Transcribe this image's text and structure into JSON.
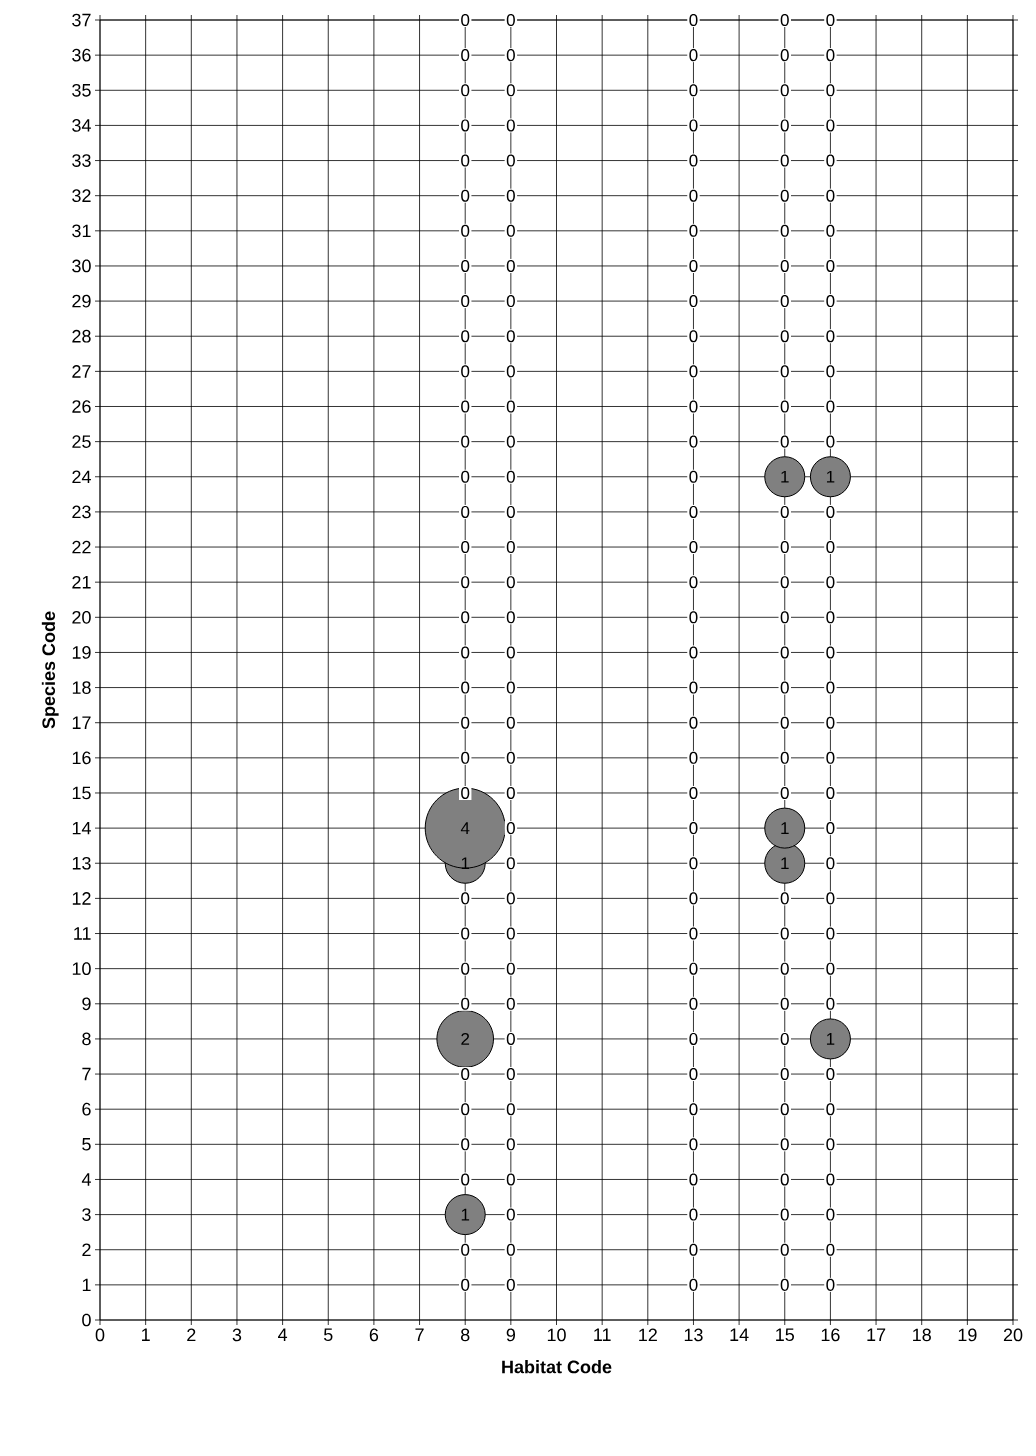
{
  "chart_data": {
    "type": "bubble",
    "xlabel": "Habitat Code",
    "ylabel": "Species Code",
    "series": [
      {
        "color": "#808080",
        "x": [
          8,
          8,
          8,
          8,
          15,
          15,
          15,
          16,
          16
        ],
        "values": [
          3,
          8,
          13,
          14,
          13,
          14,
          24,
          8,
          24
        ],
        "sizes": [
          0.25,
          0.5,
          0.25,
          1,
          0.25,
          0.25,
          0.25,
          0.25,
          0.25
        ]
      }
    ],
    "annotations": [
      {
        "text": "0",
        "x": 8,
        "y": 1
      },
      {
        "text": "0",
        "x": 8,
        "y": 2
      },
      {
        "text": "1",
        "x": 8,
        "y": 3
      },
      {
        "text": "0",
        "x": 8,
        "y": 4
      },
      {
        "text": "0",
        "x": 8,
        "y": 5
      },
      {
        "text": "0",
        "x": 8,
        "y": 6
      },
      {
        "text": "0",
        "x": 8,
        "y": 7
      },
      {
        "text": "2",
        "x": 8,
        "y": 8
      },
      {
        "text": "0",
        "x": 8,
        "y": 9
      },
      {
        "text": "0",
        "x": 8,
        "y": 10
      },
      {
        "text": "0",
        "x": 8,
        "y": 11
      },
      {
        "text": "0",
        "x": 8,
        "y": 12
      },
      {
        "text": "1",
        "x": 8,
        "y": 13
      },
      {
        "text": "4",
        "x": 8,
        "y": 14
      },
      {
        "text": "0",
        "x": 8,
        "y": 15
      },
      {
        "text": "0",
        "x": 8,
        "y": 16
      },
      {
        "text": "0",
        "x": 8,
        "y": 17
      },
      {
        "text": "0",
        "x": 8,
        "y": 18
      },
      {
        "text": "0",
        "x": 8,
        "y": 19
      },
      {
        "text": "0",
        "x": 8,
        "y": 20
      },
      {
        "text": "0",
        "x": 8,
        "y": 21
      },
      {
        "text": "0",
        "x": 8,
        "y": 22
      },
      {
        "text": "0",
        "x": 8,
        "y": 23
      },
      {
        "text": "0",
        "x": 8,
        "y": 24
      },
      {
        "text": "0",
        "x": 8,
        "y": 25
      },
      {
        "text": "0",
        "x": 8,
        "y": 26
      },
      {
        "text": "0",
        "x": 8,
        "y": 27
      },
      {
        "text": "0",
        "x": 8,
        "y": 28
      },
      {
        "text": "0",
        "x": 8,
        "y": 29
      },
      {
        "text": "0",
        "x": 8,
        "y": 30
      },
      {
        "text": "0",
        "x": 8,
        "y": 31
      },
      {
        "text": "0",
        "x": 8,
        "y": 32
      },
      {
        "text": "0",
        "x": 8,
        "y": 33
      },
      {
        "text": "0",
        "x": 8,
        "y": 34
      },
      {
        "text": "0",
        "x": 8,
        "y": 35
      },
      {
        "text": "0",
        "x": 8,
        "y": 36
      },
      {
        "text": "0",
        "x": 8,
        "y": 37
      },
      {
        "text": "0",
        "x": 9,
        "y": 1
      },
      {
        "text": "0",
        "x": 9,
        "y": 2
      },
      {
        "text": "0",
        "x": 9,
        "y": 3
      },
      {
        "text": "0",
        "x": 9,
        "y": 4
      },
      {
        "text": "0",
        "x": 9,
        "y": 5
      },
      {
        "text": "0",
        "x": 9,
        "y": 6
      },
      {
        "text": "0",
        "x": 9,
        "y": 7
      },
      {
        "text": "0",
        "x": 9,
        "y": 8
      },
      {
        "text": "0",
        "x": 9,
        "y": 9
      },
      {
        "text": "0",
        "x": 9,
        "y": 10
      },
      {
        "text": "0",
        "x": 9,
        "y": 11
      },
      {
        "text": "0",
        "x": 9,
        "y": 12
      },
      {
        "text": "0",
        "x": 9,
        "y": 13
      },
      {
        "text": "0",
        "x": 9,
        "y": 14
      },
      {
        "text": "0",
        "x": 9,
        "y": 15
      },
      {
        "text": "0",
        "x": 9,
        "y": 16
      },
      {
        "text": "0",
        "x": 9,
        "y": 17
      },
      {
        "text": "0",
        "x": 9,
        "y": 18
      },
      {
        "text": "0",
        "x": 9,
        "y": 19
      },
      {
        "text": "0",
        "x": 9,
        "y": 20
      },
      {
        "text": "0",
        "x": 9,
        "y": 21
      },
      {
        "text": "0",
        "x": 9,
        "y": 22
      },
      {
        "text": "0",
        "x": 9,
        "y": 23
      },
      {
        "text": "0",
        "x": 9,
        "y": 24
      },
      {
        "text": "0",
        "x": 9,
        "y": 25
      },
      {
        "text": "0",
        "x": 9,
        "y": 26
      },
      {
        "text": "0",
        "x": 9,
        "y": 27
      },
      {
        "text": "0",
        "x": 9,
        "y": 28
      },
      {
        "text": "0",
        "x": 9,
        "y": 29
      },
      {
        "text": "0",
        "x": 9,
        "y": 30
      },
      {
        "text": "0",
        "x": 9,
        "y": 31
      },
      {
        "text": "0",
        "x": 9,
        "y": 32
      },
      {
        "text": "0",
        "x": 9,
        "y": 33
      },
      {
        "text": "0",
        "x": 9,
        "y": 34
      },
      {
        "text": "0",
        "x": 9,
        "y": 35
      },
      {
        "text": "0",
        "x": 9,
        "y": 36
      },
      {
        "text": "0",
        "x": 9,
        "y": 37
      },
      {
        "text": "0",
        "x": 13,
        "y": 1
      },
      {
        "text": "0",
        "x": 13,
        "y": 2
      },
      {
        "text": "0",
        "x": 13,
        "y": 3
      },
      {
        "text": "0",
        "x": 13,
        "y": 4
      },
      {
        "text": "0",
        "x": 13,
        "y": 5
      },
      {
        "text": "0",
        "x": 13,
        "y": 6
      },
      {
        "text": "0",
        "x": 13,
        "y": 7
      },
      {
        "text": "0",
        "x": 13,
        "y": 8
      },
      {
        "text": "0",
        "x": 13,
        "y": 9
      },
      {
        "text": "0",
        "x": 13,
        "y": 10
      },
      {
        "text": "0",
        "x": 13,
        "y": 11
      },
      {
        "text": "0",
        "x": 13,
        "y": 12
      },
      {
        "text": "0",
        "x": 13,
        "y": 13
      },
      {
        "text": "0",
        "x": 13,
        "y": 14
      },
      {
        "text": "0",
        "x": 13,
        "y": 15
      },
      {
        "text": "0",
        "x": 13,
        "y": 16
      },
      {
        "text": "0",
        "x": 13,
        "y": 17
      },
      {
        "text": "0",
        "x": 13,
        "y": 18
      },
      {
        "text": "0",
        "x": 13,
        "y": 19
      },
      {
        "text": "0",
        "x": 13,
        "y": 20
      },
      {
        "text": "0",
        "x": 13,
        "y": 21
      },
      {
        "text": "0",
        "x": 13,
        "y": 22
      },
      {
        "text": "0",
        "x": 13,
        "y": 23
      },
      {
        "text": "0",
        "x": 13,
        "y": 24
      },
      {
        "text": "0",
        "x": 13,
        "y": 25
      },
      {
        "text": "0",
        "x": 13,
        "y": 26
      },
      {
        "text": "0",
        "x": 13,
        "y": 27
      },
      {
        "text": "0",
        "x": 13,
        "y": 28
      },
      {
        "text": "0",
        "x": 13,
        "y": 29
      },
      {
        "text": "0",
        "x": 13,
        "y": 30
      },
      {
        "text": "0",
        "x": 13,
        "y": 31
      },
      {
        "text": "0",
        "x": 13,
        "y": 32
      },
      {
        "text": "0",
        "x": 13,
        "y": 33
      },
      {
        "text": "0",
        "x": 13,
        "y": 34
      },
      {
        "text": "0",
        "x": 13,
        "y": 35
      },
      {
        "text": "0",
        "x": 13,
        "y": 36
      },
      {
        "text": "0",
        "x": 13,
        "y": 37
      },
      {
        "text": "0",
        "x": 15,
        "y": 1
      },
      {
        "text": "0",
        "x": 15,
        "y": 2
      },
      {
        "text": "0",
        "x": 15,
        "y": 3
      },
      {
        "text": "0",
        "x": 15,
        "y": 4
      },
      {
        "text": "0",
        "x": 15,
        "y": 5
      },
      {
        "text": "0",
        "x": 15,
        "y": 6
      },
      {
        "text": "0",
        "x": 15,
        "y": 7
      },
      {
        "text": "0",
        "x": 15,
        "y": 8
      },
      {
        "text": "0",
        "x": 15,
        "y": 9
      },
      {
        "text": "0",
        "x": 15,
        "y": 10
      },
      {
        "text": "0",
        "x": 15,
        "y": 11
      },
      {
        "text": "0",
        "x": 15,
        "y": 12
      },
      {
        "text": "1",
        "x": 15,
        "y": 13
      },
      {
        "text": "1",
        "x": 15,
        "y": 14
      },
      {
        "text": "0",
        "x": 15,
        "y": 15
      },
      {
        "text": "0",
        "x": 15,
        "y": 16
      },
      {
        "text": "0",
        "x": 15,
        "y": 17
      },
      {
        "text": "0",
        "x": 15,
        "y": 18
      },
      {
        "text": "0",
        "x": 15,
        "y": 19
      },
      {
        "text": "0",
        "x": 15,
        "y": 20
      },
      {
        "text": "0",
        "x": 15,
        "y": 21
      },
      {
        "text": "0",
        "x": 15,
        "y": 22
      },
      {
        "text": "0",
        "x": 15,
        "y": 23
      },
      {
        "text": "1",
        "x": 15,
        "y": 24
      },
      {
        "text": "0",
        "x": 15,
        "y": 25
      },
      {
        "text": "0",
        "x": 15,
        "y": 26
      },
      {
        "text": "0",
        "x": 15,
        "y": 27
      },
      {
        "text": "0",
        "x": 15,
        "y": 28
      },
      {
        "text": "0",
        "x": 15,
        "y": 29
      },
      {
        "text": "0",
        "x": 15,
        "y": 30
      },
      {
        "text": "0",
        "x": 15,
        "y": 31
      },
      {
        "text": "0",
        "x": 15,
        "y": 32
      },
      {
        "text": "0",
        "x": 15,
        "y": 33
      },
      {
        "text": "0",
        "x": 15,
        "y": 34
      },
      {
        "text": "0",
        "x": 15,
        "y": 35
      },
      {
        "text": "0",
        "x": 15,
        "y": 36
      },
      {
        "text": "0",
        "x": 15,
        "y": 37
      },
      {
        "text": "0",
        "x": 16,
        "y": 1
      },
      {
        "text": "0",
        "x": 16,
        "y": 2
      },
      {
        "text": "0",
        "x": 16,
        "y": 3
      },
      {
        "text": "0",
        "x": 16,
        "y": 4
      },
      {
        "text": "0",
        "x": 16,
        "y": 5
      },
      {
        "text": "0",
        "x": 16,
        "y": 6
      },
      {
        "text": "0",
        "x": 16,
        "y": 7
      },
      {
        "text": "1",
        "x": 16,
        "y": 8
      },
      {
        "text": "0",
        "x": 16,
        "y": 9
      },
      {
        "text": "0",
        "x": 16,
        "y": 10
      },
      {
        "text": "0",
        "x": 16,
        "y": 11
      },
      {
        "text": "0",
        "x": 16,
        "y": 12
      },
      {
        "text": "0",
        "x": 16,
        "y": 13
      },
      {
        "text": "0",
        "x": 16,
        "y": 14
      },
      {
        "text": "0",
        "x": 16,
        "y": 15
      },
      {
        "text": "0",
        "x": 16,
        "y": 16
      },
      {
        "text": "0",
        "x": 16,
        "y": 17
      },
      {
        "text": "0",
        "x": 16,
        "y": 18
      },
      {
        "text": "0",
        "x": 16,
        "y": 19
      },
      {
        "text": "0",
        "x": 16,
        "y": 20
      },
      {
        "text": "0",
        "x": 16,
        "y": 21
      },
      {
        "text": "0",
        "x": 16,
        "y": 22
      },
      {
        "text": "0",
        "x": 16,
        "y": 23
      },
      {
        "text": "1",
        "x": 16,
        "y": 24
      },
      {
        "text": "0",
        "x": 16,
        "y": 25
      },
      {
        "text": "0",
        "x": 16,
        "y": 26
      },
      {
        "text": "0",
        "x": 16,
        "y": 27
      },
      {
        "text": "0",
        "x": 16,
        "y": 28
      },
      {
        "text": "0",
        "x": 16,
        "y": 29
      },
      {
        "text": "0",
        "x": 16,
        "y": 30
      },
      {
        "text": "0",
        "x": 16,
        "y": 31
      },
      {
        "text": "0",
        "x": 16,
        "y": 32
      },
      {
        "text": "0",
        "x": 16,
        "y": 33
      },
      {
        "text": "0",
        "x": 16,
        "y": 34
      },
      {
        "text": "0",
        "x": 16,
        "y": 35
      },
      {
        "text": "0",
        "x": 16,
        "y": 36
      },
      {
        "text": "0",
        "x": 16,
        "y": 37
      }
    ],
    "grid": true,
    "xlim": [
      0,
      20
    ],
    "xticks": [
      0,
      1,
      2,
      3,
      4,
      5,
      6,
      7,
      8,
      9,
      10,
      11,
      12,
      13,
      14,
      15,
      16,
      17,
      18,
      19,
      20
    ],
    "ylim": [
      0,
      37
    ],
    "yticks": [
      0,
      1,
      2,
      3,
      4,
      5,
      6,
      7,
      8,
      9,
      10,
      11,
      12,
      13,
      14,
      15,
      16,
      17,
      18,
      19,
      20,
      21,
      22,
      23,
      24,
      25,
      26,
      27,
      28,
      29,
      30,
      31,
      32,
      33,
      34,
      35,
      36,
      37
    ]
  }
}
